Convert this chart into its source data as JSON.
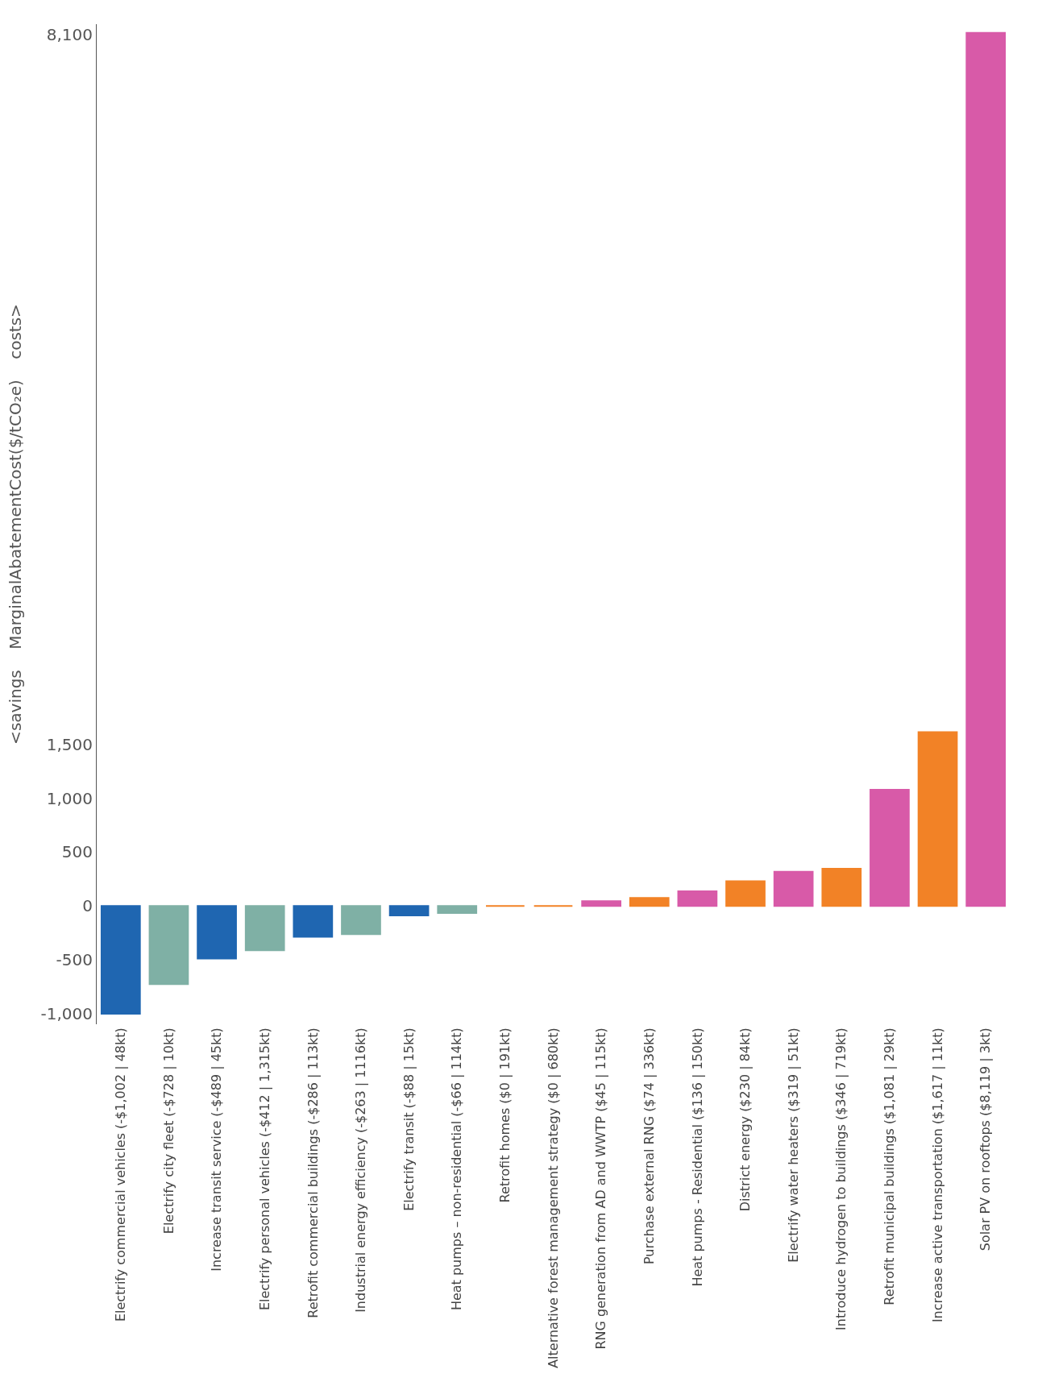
{
  "chart_data": {
    "type": "bar",
    "ylabel": "<savings    MarginalAbatementCost($/tCO₂e)    costs>",
    "categories": [
      "Electrify commercial vehicles (-$1,002 | 48kt)",
      "Electrify city fleet (-$728 | 10kt)",
      "Increase transit service (-$489 | 45kt)",
      "Electrify personal vehicles (-$412 | 1,315kt)",
      "Retrofit commercial buildings (-$286 | 113kt)",
      "Industrial energy efficiency (-$263 | 1116kt)",
      "Electrify transit (-$88 | 15kt)",
      "Heat pumps – non-residential (-$66 | 114kt)",
      "Retrofit homes ($0 | 191kt)",
      "Alternative forest management strategy ($0 | 680kt)",
      "RNG generation from AD and WWTP ($45 | 115kt)",
      "Purchase external RNG ($74 | 336kt)",
      "Heat pumps - Residential ($136 | 150kt)",
      "District energy ($230 | 84kt)",
      "Electrify water heaters ($319 | 51kt)",
      "Introduce hydrogen to buildings ($346 | 719kt)",
      "Retrofit municipal buildings ($1,081 | 29kt)",
      "Increase active transportation ($1,617 | 11kt)",
      "Solar PV on rooftops ($8,119 | 3kt)"
    ],
    "values": [
      -1002,
      -728,
      -489,
      -412,
      -286,
      -263,
      -88,
      -66,
      0,
      0,
      45,
      74,
      136,
      230,
      319,
      346,
      1081,
      1617,
      8119
    ],
    "colors": [
      "#1f66b1",
      "#7fb0a5",
      "#1f66b1",
      "#7fb0a5",
      "#1f66b1",
      "#7fb0a5",
      "#1f66b1",
      "#7fb0a5",
      "#f28226",
      "#f28226",
      "#d85aa8",
      "#f28226",
      "#d85aa8",
      "#f28226",
      "#d85aa8",
      "#f28226",
      "#d85aa8",
      "#f28226",
      "#d85aa8"
    ],
    "ylim": [
      -1100,
      8200
    ],
    "yticks": [
      {
        "value": -1000,
        "label": "-1,000"
      },
      {
        "value": -500,
        "label": "-500"
      },
      {
        "value": 0,
        "label": "0"
      },
      {
        "value": 500,
        "label": "500"
      },
      {
        "value": 1000,
        "label": "1,000"
      },
      {
        "value": 1500,
        "label": "1,500"
      },
      {
        "value": 8100,
        "label": "8,100"
      }
    ]
  }
}
